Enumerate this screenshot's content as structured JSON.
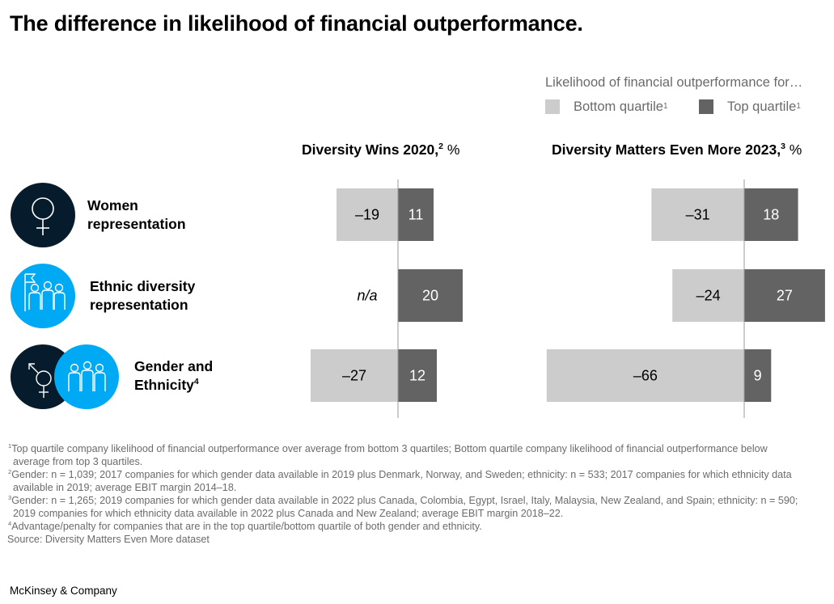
{
  "title": "The difference in likelihood of financial outperformance.",
  "legend": {
    "title": "Likelihood of financial outperformance for…",
    "items": [
      {
        "label": "Bottom quartile",
        "sup": "1",
        "color": "#cccccc"
      },
      {
        "label": "Top quartile",
        "sup": "1",
        "color": "#636363"
      }
    ]
  },
  "rows": [
    {
      "label_line1": "Women",
      "label_line2": "representation",
      "sup": "",
      "icon": "female-symbol-icon"
    },
    {
      "label_line1": "Ethnic diversity",
      "label_line2": "representation",
      "sup": "",
      "icon": "people-group-icon"
    },
    {
      "label_line1": "Gender and",
      "label_line2": "Ethnicity",
      "sup": "4",
      "icon": "gender-and-people-icon"
    }
  ],
  "chart_data": [
    {
      "type": "bar",
      "title": "Diversity Wins 2020,",
      "title_sup": "2",
      "unit": "%",
      "categories": [
        "Women representation",
        "Ethnic diversity representation",
        "Gender and Ethnicity"
      ],
      "series": [
        {
          "name": "Bottom quartile",
          "values": [
            -19,
            null,
            -27
          ],
          "labels": [
            "–19",
            "n/a",
            "–27"
          ]
        },
        {
          "name": "Top quartile",
          "values": [
            11,
            20,
            12
          ],
          "labels": [
            "11",
            "20",
            "12"
          ]
        }
      ]
    },
    {
      "type": "bar",
      "title": "Diversity Matters Even More 2023,",
      "title_sup": "3",
      "unit": "%",
      "categories": [
        "Women representation",
        "Ethnic diversity representation",
        "Gender and Ethnicity"
      ],
      "series": [
        {
          "name": "Bottom quartile",
          "values": [
            -31,
            -24,
            -66
          ],
          "labels": [
            "–31",
            "–24",
            "–66"
          ]
        },
        {
          "name": "Top quartile",
          "values": [
            18,
            27,
            9
          ],
          "labels": [
            "18",
            "27",
            "9"
          ]
        }
      ]
    }
  ],
  "footnotes": [
    {
      "sup": "1",
      "text": "Top quartile company likelihood of financial outperformance over average from bottom 3 quartiles; Bottom quartile company likelihood of financial outperformance below average from top 3 quartiles."
    },
    {
      "sup": "2",
      "text": "Gender: n = 1,039; 2017 companies for which gender data available in 2019 plus Denmark, Norway, and Sweden; ethnicity: n = 533; 2017 companies for which ethnicity data available in 2019; average EBIT margin 2014–18."
    },
    {
      "sup": "3",
      "text": "Gender: n = 1,265; 2019 companies for which gender data available in 2022 plus Canada, Colombia, Egypt, Israel, Italy, Malaysia, New Zealand, and Spain; ethnicity: n = 590; 2019 companies for which ethnicity data available in 2022 plus Canada and New Zealand; average EBIT margin 2018–22."
    },
    {
      "sup": "4",
      "text": "Advantage/penalty for companies that are in the top quartile/bottom quartile of both gender and ethnicity."
    }
  ],
  "source": "Source: Diversity Matters Even More dataset",
  "brand": "McKinsey & Company"
}
